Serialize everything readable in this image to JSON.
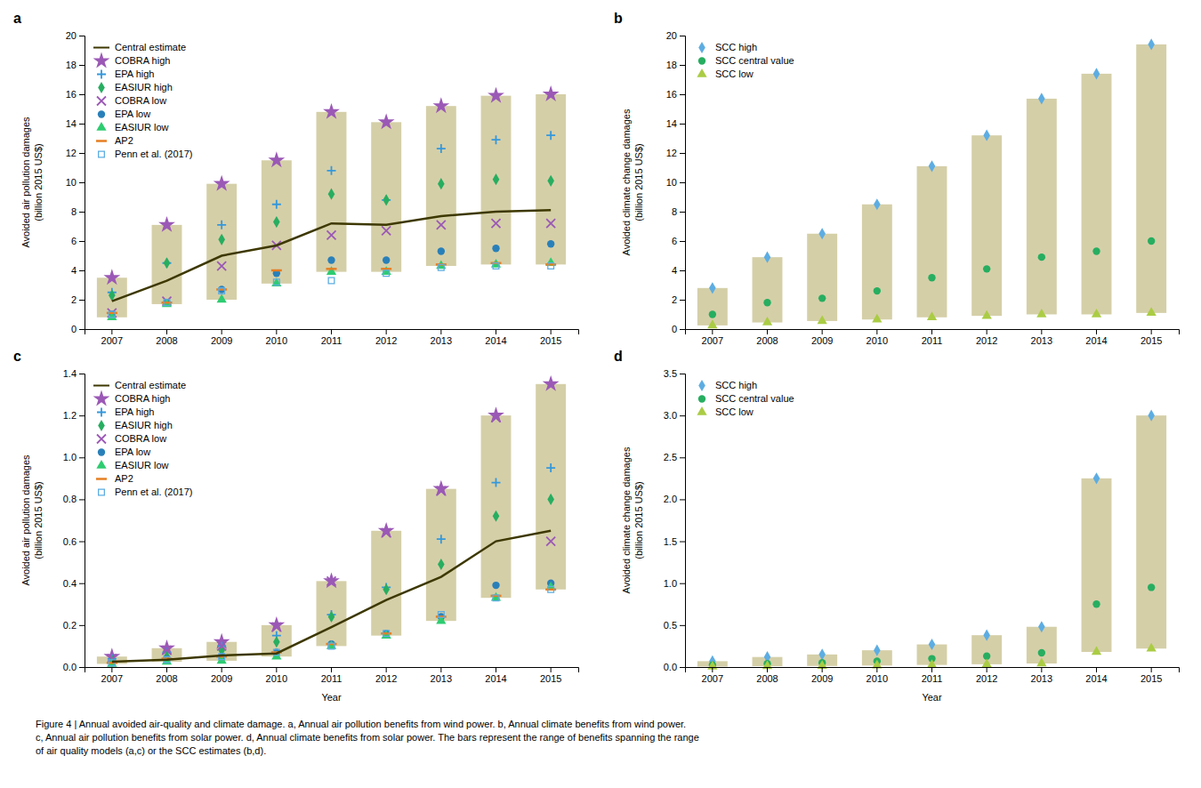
{
  "chart_data": [
    {
      "type": "scatter",
      "title": "a",
      "y_label": "Avoided air pollution damages\n(billion 2015 US$)",
      "categories": [
        "2007",
        "2008",
        "2009",
        "2010",
        "2011",
        "2012",
        "2013",
        "2014",
        "2015"
      ],
      "ylim": [
        0,
        20
      ],
      "yticks": [
        0,
        2,
        4,
        6,
        8,
        10,
        12,
        14,
        16,
        18,
        20
      ],
      "grid": false,
      "legend": "upper left",
      "series": [
        {
          "type": "range_bar",
          "color": "#D5CFA8",
          "low": [
            0.8,
            1.7,
            2.0,
            3.1,
            3.9,
            3.9,
            4.3,
            4.4,
            4.4
          ],
          "high": [
            3.5,
            7.1,
            9.9,
            11.5,
            14.8,
            14.1,
            15.2,
            15.9,
            16.0
          ]
        },
        {
          "name": "Central estimate",
          "type": "line",
          "line_style": "solid",
          "color": "#3D3800",
          "values": [
            1.9,
            3.3,
            5.0,
            5.7,
            7.2,
            7.1,
            7.7,
            8.0,
            8.1
          ]
        },
        {
          "name": "COBRA high",
          "type": "scatter",
          "marker": "star",
          "color": "#9B59B6",
          "values": [
            3.5,
            7.1,
            9.9,
            11.5,
            14.8,
            14.1,
            15.2,
            15.9,
            16.0
          ]
        },
        {
          "name": "EPA high",
          "type": "scatter",
          "marker": "plus",
          "color": "#3498DB",
          "values": [
            2.5,
            4.5,
            7.1,
            8.5,
            10.8,
            8.8,
            12.3,
            12.9,
            13.2
          ]
        },
        {
          "name": "EASIUR high",
          "type": "scatter",
          "marker": "diamond",
          "color": "#27AE60",
          "values": [
            2.3,
            4.5,
            6.1,
            7.3,
            9.2,
            8.8,
            9.9,
            10.2,
            10.1
          ]
        },
        {
          "name": "COBRA low",
          "type": "scatter",
          "marker": "x",
          "color": "#9B59B6",
          "values": [
            1.1,
            1.9,
            4.3,
            5.7,
            6.4,
            6.7,
            7.1,
            7.2,
            7.2
          ]
        },
        {
          "name": "EPA low",
          "type": "scatter",
          "marker": "circle",
          "color": "#2980B9",
          "values": [
            1.0,
            1.8,
            2.7,
            3.8,
            4.7,
            4.7,
            5.3,
            5.5,
            5.8
          ]
        },
        {
          "name": "EASIUR low",
          "type": "scatter",
          "marker": "triangle",
          "color": "#2ECC71",
          "values": [
            0.8,
            1.7,
            2.0,
            3.1,
            3.9,
            3.9,
            4.3,
            4.4,
            4.5
          ]
        },
        {
          "name": "AP2",
          "type": "scatter",
          "marker": "hline",
          "color": "#E67E22",
          "values": [
            1.1,
            1.8,
            2.7,
            4.0,
            4.1,
            4.1,
            4.4,
            4.5,
            4.4
          ]
        },
        {
          "name": "Penn et al. (2017)",
          "type": "scatter",
          "marker": "open-square",
          "color": "#5DADE2",
          "values": [
            1.0,
            1.8,
            2.6,
            3.2,
            3.3,
            3.8,
            4.2,
            4.3,
            4.3
          ]
        }
      ]
    },
    {
      "type": "scatter",
      "title": "b",
      "y_label": "Avoided climate change damages\n(billion 2015 US$)",
      "categories": [
        "2007",
        "2008",
        "2009",
        "2010",
        "2011",
        "2012",
        "2013",
        "2014",
        "2015"
      ],
      "ylim": [
        0,
        20
      ],
      "yticks": [
        0,
        2,
        4,
        6,
        8,
        10,
        12,
        14,
        16,
        18,
        20
      ],
      "grid": false,
      "legend": "upper left",
      "series": [
        {
          "type": "range_bar",
          "color": "#D5CFA8",
          "low": [
            0.25,
            0.45,
            0.55,
            0.65,
            0.8,
            0.9,
            1.0,
            1.0,
            1.1
          ],
          "high": [
            2.8,
            4.9,
            6.5,
            8.5,
            11.1,
            13.2,
            15.7,
            17.4,
            19.4
          ]
        },
        {
          "name": "SCC high",
          "type": "scatter",
          "marker": "diamond",
          "color": "#5DADE2",
          "values": [
            2.8,
            4.9,
            6.5,
            8.5,
            11.1,
            13.2,
            15.7,
            17.4,
            19.4
          ]
        },
        {
          "name": "SCC central value",
          "type": "scatter",
          "marker": "circle",
          "color": "#27AE60",
          "values": [
            1.0,
            1.8,
            2.1,
            2.6,
            3.5,
            4.1,
            4.9,
            5.3,
            6.0
          ]
        },
        {
          "name": "SCC low",
          "type": "scatter",
          "marker": "triangle",
          "color": "#AACC44",
          "values": [
            0.25,
            0.45,
            0.55,
            0.65,
            0.8,
            0.9,
            1.0,
            1.0,
            1.1
          ]
        }
      ]
    },
    {
      "type": "scatter",
      "title": "c",
      "y_label": "Avoided air pollution damages\n(billion 2015 US$)",
      "x_label": "Year",
      "categories": [
        "2007",
        "2008",
        "2009",
        "2010",
        "2011",
        "2012",
        "2013",
        "2014",
        "2015"
      ],
      "ylim": [
        0,
        1.4
      ],
      "yticks": [
        {
          "value": 0,
          "label": "0.0"
        },
        0.2,
        0.4,
        0.6,
        0.8,
        {
          "value": 1,
          "label": "1.0"
        },
        1.2,
        1.4
      ],
      "grid": false,
      "legend": "upper left",
      "series": [
        {
          "type": "range_bar",
          "color": "#D5CFA8",
          "low": [
            0.015,
            0.025,
            0.03,
            0.05,
            0.1,
            0.15,
            0.22,
            0.33,
            0.37
          ],
          "high": [
            0.05,
            0.09,
            0.12,
            0.2,
            0.41,
            0.65,
            0.85,
            1.2,
            1.35
          ]
        },
        {
          "name": "Central estimate",
          "type": "line",
          "line_style": "solid",
          "color": "#3D3800",
          "values": [
            0.025,
            0.035,
            0.055,
            0.065,
            0.19,
            0.32,
            0.43,
            0.6,
            0.65
          ]
        },
        {
          "name": "COBRA high",
          "type": "scatter",
          "marker": "star",
          "color": "#9B59B6",
          "values": [
            0.05,
            0.09,
            0.12,
            0.2,
            0.41,
            0.65,
            0.85,
            1.2,
            1.35
          ]
        },
        {
          "name": "EPA high",
          "type": "scatter",
          "marker": "plus",
          "color": "#3498DB",
          "values": [
            0.04,
            0.07,
            0.1,
            0.15,
            0.25,
            0.38,
            0.61,
            0.88,
            0.95
          ]
        },
        {
          "name": "EASIUR high",
          "type": "scatter",
          "marker": "diamond",
          "color": "#27AE60",
          "values": [
            0.03,
            0.05,
            0.08,
            0.12,
            0.24,
            0.37,
            0.49,
            0.72,
            0.8
          ]
        },
        {
          "name": "COBRA low",
          "type": "scatter",
          "marker": "x",
          "color": "#9B59B6",
          "values": [
            0.04,
            0.08,
            0.1,
            0.19,
            0.41,
            0.64,
            0.84,
            1.19,
            0.6
          ]
        },
        {
          "name": "EPA low",
          "type": "scatter",
          "marker": "circle",
          "color": "#2980B9",
          "values": [
            0.02,
            0.04,
            0.05,
            0.07,
            0.11,
            0.16,
            0.24,
            0.39,
            0.4
          ]
        },
        {
          "name": "EASIUR low",
          "type": "scatter",
          "marker": "triangle",
          "color": "#2ECC71",
          "values": [
            0.015,
            0.025,
            0.03,
            0.05,
            0.1,
            0.15,
            0.22,
            0.33,
            0.38
          ]
        },
        {
          "name": "AP2",
          "type": "scatter",
          "marker": "hline",
          "color": "#E67E22",
          "values": [
            0.02,
            0.04,
            0.05,
            0.07,
            0.11,
            0.16,
            0.24,
            0.34,
            0.37
          ]
        },
        {
          "name": "Penn et al. (2017)",
          "type": "scatter",
          "marker": "open-square",
          "color": "#5DADE2",
          "values": [
            0.02,
            0.035,
            0.05,
            0.07,
            0.1,
            0.16,
            0.25,
            0.33,
            0.37
          ]
        }
      ]
    },
    {
      "type": "scatter",
      "title": "d",
      "y_label": "Avoided climate change damages\n(billion 2015 US$)",
      "x_label": "Year",
      "categories": [
        "2007",
        "2008",
        "2009",
        "2010",
        "2011",
        "2012",
        "2013",
        "2014",
        "2015"
      ],
      "ylim": [
        0,
        3.5
      ],
      "yticks": [
        {
          "value": 0,
          "label": "0.0"
        },
        0.5,
        {
          "value": 1,
          "label": "1.0"
        },
        1.5,
        {
          "value": 2,
          "label": "2.0"
        },
        2.5,
        {
          "value": 3,
          "label": "3.0"
        },
        3.5
      ],
      "grid": false,
      "legend": "upper left",
      "series": [
        {
          "type": "range_bar",
          "color": "#D5CFA8",
          "low": [
            0.005,
            0.01,
            0.013,
            0.018,
            0.025,
            0.033,
            0.042,
            0.18,
            0.22
          ],
          "high": [
            0.07,
            0.12,
            0.15,
            0.2,
            0.27,
            0.38,
            0.48,
            2.25,
            3.0
          ]
        },
        {
          "name": "SCC high",
          "type": "scatter",
          "marker": "diamond",
          "color": "#5DADE2",
          "values": [
            0.07,
            0.12,
            0.15,
            0.2,
            0.27,
            0.38,
            0.48,
            2.25,
            3.0
          ]
        },
        {
          "name": "SCC central value",
          "type": "scatter",
          "marker": "circle",
          "color": "#27AE60",
          "values": [
            0.025,
            0.04,
            0.05,
            0.07,
            0.1,
            0.13,
            0.17,
            0.75,
            0.95
          ]
        },
        {
          "name": "SCC low",
          "type": "scatter",
          "marker": "triangle",
          "color": "#AACC44",
          "values": [
            0.005,
            0.01,
            0.013,
            0.018,
            0.025,
            0.033,
            0.042,
            0.18,
            0.22
          ]
        }
      ]
    }
  ],
  "caption": [
    "Figure 4 | Annual avoided air-quality and climate damage. a, Annual air pollution benefits from wind power. b, Annual climate benefits from wind power.",
    "c, Annual air pollution benefits from solar power. d, Annual climate benefits from solar power. The bars represent the range of benefits spanning the range",
    "of air quality models (a,c) or the SCC estimates (b,d)."
  ]
}
